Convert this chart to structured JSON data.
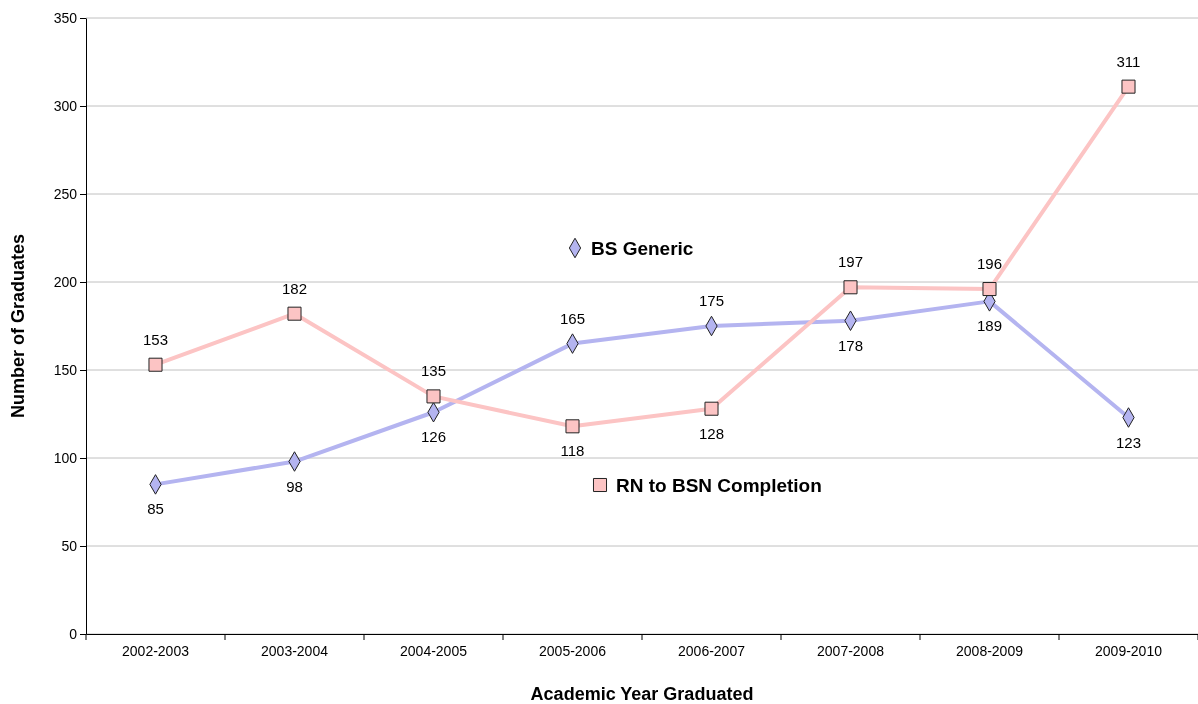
{
  "chart_data": {
    "type": "line",
    "xlabel": "Academic Year Graduated",
    "ylabel": "Number of Graduates",
    "categories": [
      "2002-2003",
      "2003-2004",
      "2004-2005",
      "2005-2006",
      "2006-2007",
      "2007-2008",
      "2008-2009",
      "2009-2010"
    ],
    "series": [
      {
        "name": "BS Generic",
        "color": "#b4b4f0",
        "marker": "diamond",
        "values": [
          85,
          98,
          126,
          165,
          175,
          178,
          189,
          123
        ]
      },
      {
        "name": "RN to BSN Completion",
        "color": "#fcc4c4",
        "marker": "square",
        "values": [
          153,
          182,
          135,
          118,
          128,
          197,
          196,
          311
        ]
      }
    ],
    "ylim": [
      0,
      350
    ],
    "yticks": [
      0,
      50,
      100,
      150,
      200,
      250,
      300,
      350
    ],
    "grid": "y",
    "legend": "center",
    "data_labels": true
  }
}
